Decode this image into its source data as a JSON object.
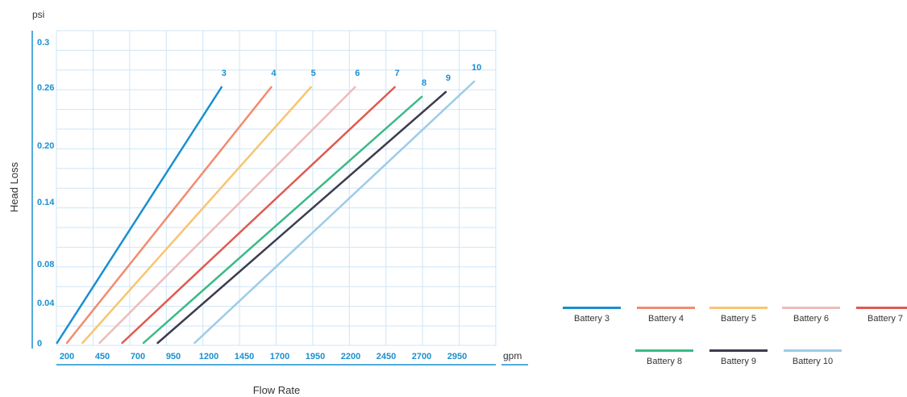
{
  "chart_data": {
    "type": "line",
    "y_unit": "psi",
    "x_unit": "gpm",
    "xlabel": "Flow Rate",
    "ylabel": "Head Loss",
    "x_ticks": [
      "200",
      "450",
      "700",
      "950",
      "1200",
      "1450",
      "1700",
      "1950",
      "2200",
      "2450",
      "2700",
      "2950"
    ],
    "y_ticks": [
      "0",
      "0.04",
      "0.08",
      "0.14",
      "0.20",
      "0.26",
      "0.3"
    ],
    "xlim": [
      80,
      3090
    ],
    "grid": true,
    "legend_position": "bottom-right",
    "series": [
      {
        "name": "Battery 3",
        "end_label": "3",
        "color": "#1a8fd1",
        "points": [
          [
            130,
            0
          ],
          [
            1290,
            0.26
          ]
        ]
      },
      {
        "name": "Battery 4",
        "end_label": "4",
        "color": "#f28b6e",
        "points": [
          [
            200,
            0
          ],
          [
            1640,
            0.26
          ]
        ]
      },
      {
        "name": "Battery 5",
        "end_label": "5",
        "color": "#f8c471",
        "points": [
          [
            310,
            0
          ],
          [
            1920,
            0.26
          ]
        ]
      },
      {
        "name": "Battery 6",
        "end_label": "6",
        "color": "#ecbcbc",
        "points": [
          [
            430,
            0
          ],
          [
            2230,
            0.26
          ]
        ]
      },
      {
        "name": "Battery 7",
        "end_label": "7",
        "color": "#e05a4f",
        "points": [
          [
            590,
            0
          ],
          [
            2510,
            0.26
          ]
        ]
      },
      {
        "name": "Battery 8",
        "end_label": "8",
        "color": "#3aba85",
        "points": [
          [
            740,
            0
          ],
          [
            2700,
            0.25
          ]
        ]
      },
      {
        "name": "Battery 9",
        "end_label": "9",
        "color": "#3c3c50",
        "points": [
          [
            840,
            0
          ],
          [
            2870,
            0.255
          ]
        ]
      },
      {
        "name": "Battery 10",
        "end_label": "10",
        "color": "#9dcbe8",
        "points": [
          [
            1100,
            0
          ],
          [
            3070,
            0.265
          ]
        ]
      }
    ]
  },
  "colors": {
    "axis": "#1a8fd1",
    "grid": "#cfe6f5",
    "tick_text": "#1a8fd1",
    "label_text": "#333333"
  }
}
